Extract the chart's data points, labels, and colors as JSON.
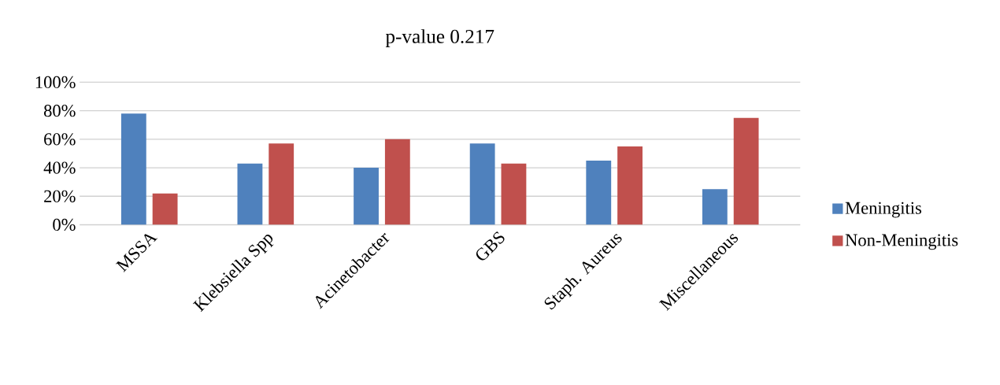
{
  "chart_data": {
    "type": "bar",
    "title": "p-value 0.217",
    "categories": [
      "MSSA",
      "Klebsiella Spp",
      "Acinetobacter",
      "GBS",
      "Staph. Aureus",
      "Miscellaneous"
    ],
    "series": [
      {
        "name": "Meningitis",
        "color": "#4f81bd",
        "values": [
          78,
          43,
          40,
          57,
          45,
          25
        ]
      },
      {
        "name": "Non-Meningitis",
        "color": "#c0504d",
        "values": [
          22,
          57,
          60,
          43,
          55,
          75
        ]
      }
    ],
    "ylim": [
      0,
      100
    ],
    "yticks": [
      {
        "value": 0,
        "label": "0%"
      },
      {
        "value": 20,
        "label": "20%"
      },
      {
        "value": 40,
        "label": "40%"
      },
      {
        "value": 60,
        "label": "60%"
      },
      {
        "value": 80,
        "label": "80%"
      },
      {
        "value": 100,
        "label": "100%"
      }
    ],
    "grid": "y",
    "legend": "right"
  }
}
